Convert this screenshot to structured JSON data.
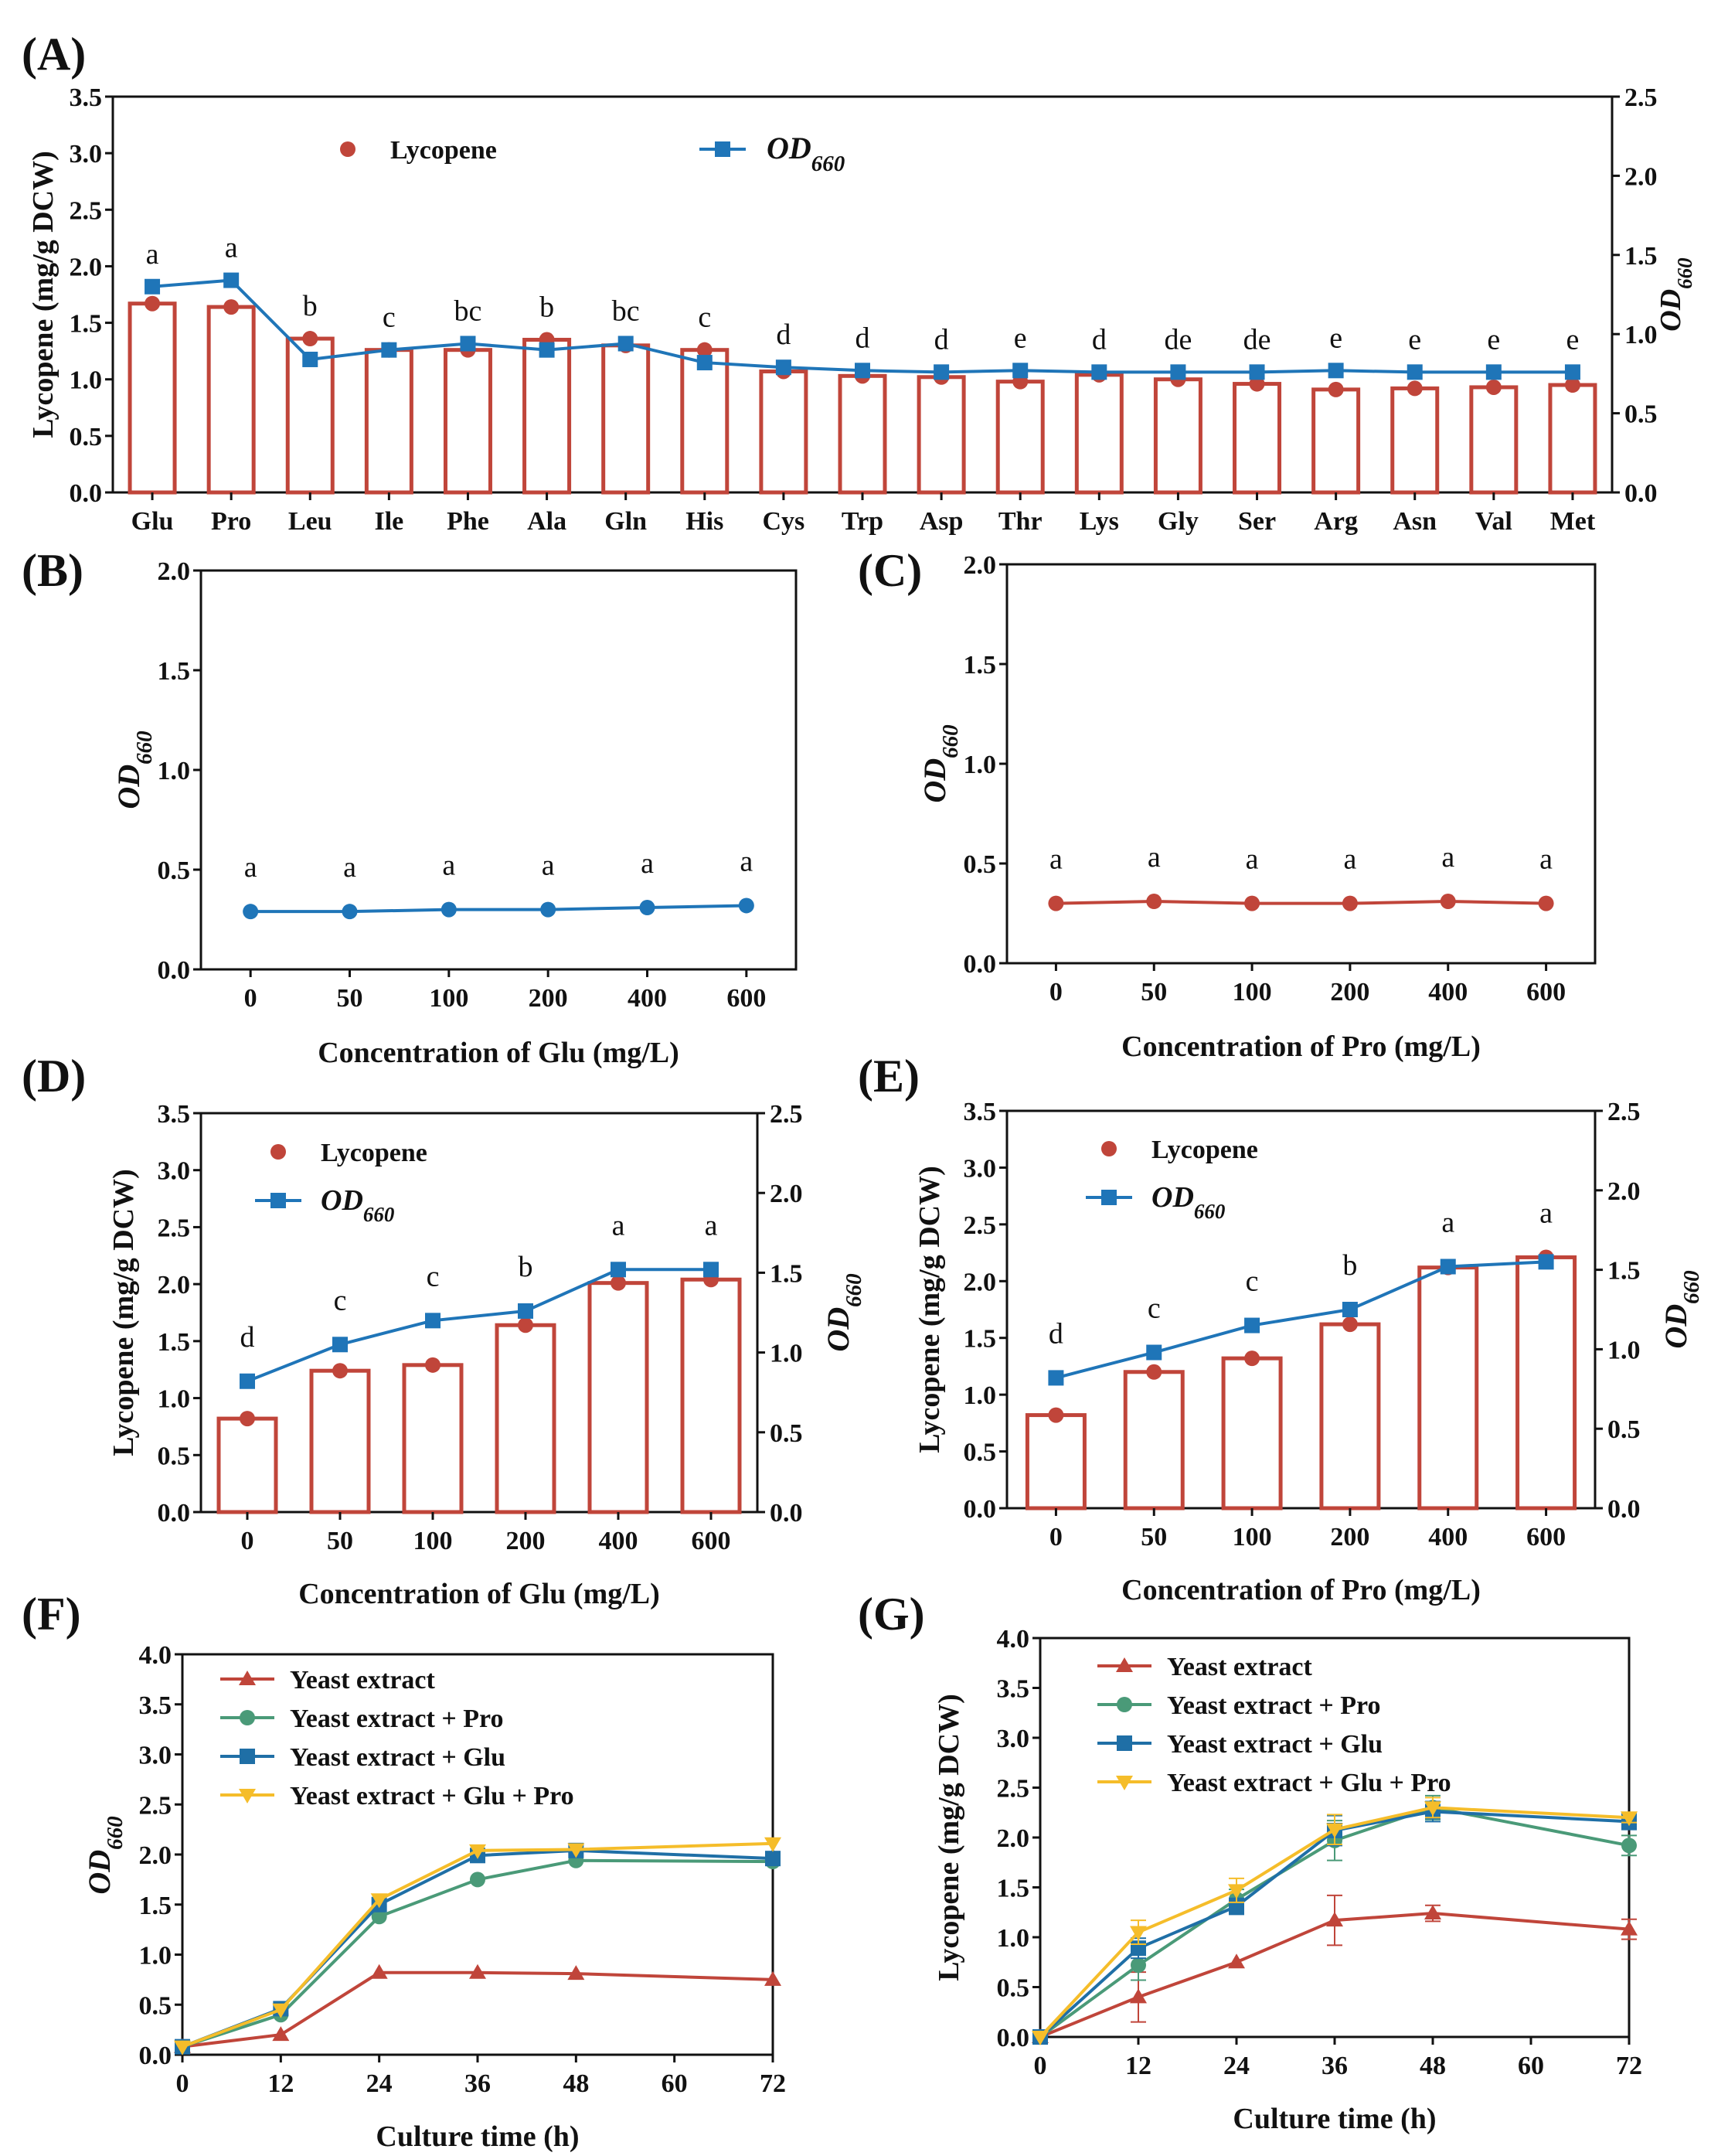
{
  "panels": [
    "(A)",
    "(B)",
    "(C)",
    "(D)",
    "(E)",
    "(F)",
    "(G)"
  ],
  "colors": {
    "lycopene": "#c0453a",
    "od": "#1f75b8",
    "green": "#4a9a78",
    "yellow": "#f5bd2a",
    "blue_dark": "#1f6fa6",
    "axis": "#111111"
  },
  "chart_data": [
    {
      "id": "A",
      "type": "bar",
      "panel_label": "(A)",
      "categories": [
        "Glu",
        "Pro",
        "Leu",
        "Ile",
        "Phe",
        "Ala",
        "Gln",
        "His",
        "Cys",
        "Trp",
        "Asp",
        "Thr",
        "Lys",
        "Gly",
        "Ser",
        "Arg",
        "Asn",
        "Val",
        "Met"
      ],
      "lycopene": [
        1.67,
        1.64,
        1.36,
        1.26,
        1.26,
        1.35,
        1.3,
        1.26,
        1.07,
        1.03,
        1.02,
        0.98,
        1.04,
        1.0,
        0.96,
        0.91,
        0.92,
        0.93,
        0.95
      ],
      "od660": [
        1.3,
        1.34,
        0.84,
        0.9,
        0.94,
        0.9,
        0.94,
        0.82,
        0.79,
        0.77,
        0.76,
        0.77,
        0.76,
        0.76,
        0.76,
        0.77,
        0.76,
        0.76,
        0.76
      ],
      "letters": [
        "a",
        "a",
        "b",
        "c",
        "bc",
        "b",
        "bc",
        "c",
        "d",
        "d",
        "d",
        "e",
        "d",
        "de",
        "de",
        "e",
        "e",
        "e",
        "e"
      ],
      "ylabel": "Lycopene (mg/g DCW)",
      "y2label": "OD660",
      "ylim": [
        0,
        3.5
      ],
      "y2lim": [
        0,
        2.5
      ],
      "yticks": [
        "0.0",
        "0.5",
        "1.0",
        "1.5",
        "2.0",
        "2.5",
        "3.0",
        "3.5"
      ],
      "y2ticks": [
        "0.0",
        "0.5",
        "1.0",
        "1.5",
        "2.0",
        "2.5"
      ],
      "legend": [
        "Lycopene",
        "OD660"
      ]
    },
    {
      "id": "B",
      "type": "line",
      "panel_label": "(B)",
      "categories": [
        "0",
        "50",
        "100",
        "200",
        "400",
        "600"
      ],
      "od660": [
        0.29,
        0.29,
        0.3,
        0.3,
        0.31,
        0.32
      ],
      "letters": [
        "a",
        "a",
        "a",
        "a",
        "a",
        "a"
      ],
      "ylabel": "OD660",
      "xlabel": "Concentration of Glu (mg/L)",
      "ylim": [
        0,
        2.0
      ],
      "yticks": [
        "0.0",
        "0.5",
        "1.0",
        "1.5",
        "2.0"
      ]
    },
    {
      "id": "C",
      "type": "line",
      "panel_label": "(C)",
      "categories": [
        "0",
        "50",
        "100",
        "200",
        "400",
        "600"
      ],
      "od660": [
        0.3,
        0.31,
        0.3,
        0.3,
        0.31,
        0.3
      ],
      "letters": [
        "a",
        "a",
        "a",
        "a",
        "a",
        "a"
      ],
      "ylabel": "OD660",
      "xlabel": "Concentration of Pro (mg/L)",
      "ylim": [
        0,
        2.0
      ],
      "yticks": [
        "0.0",
        "0.5",
        "1.0",
        "1.5",
        "2.0"
      ]
    },
    {
      "id": "D",
      "type": "bar",
      "panel_label": "(D)",
      "categories": [
        "0",
        "50",
        "100",
        "200",
        "400",
        "600"
      ],
      "lycopene": [
        0.82,
        1.24,
        1.29,
        1.64,
        2.01,
        2.04
      ],
      "od660": [
        0.82,
        1.05,
        1.2,
        1.26,
        1.52,
        1.52
      ],
      "letters": [
        "d",
        "c",
        "c",
        "b",
        "a",
        "a"
      ],
      "ylabel": "Lycopene  (mg/g DCW)",
      "y2label": "OD660",
      "xlabel": "Concentration of Glu (mg/L)",
      "ylim": [
        0,
        3.5
      ],
      "y2lim": [
        0,
        2.5
      ],
      "yticks": [
        "0.0",
        "0.5",
        "1.0",
        "1.5",
        "2.0",
        "2.5",
        "3.0",
        "3.5"
      ],
      "y2ticks": [
        "0.0",
        "0.5",
        "1.0",
        "1.5",
        "2.0",
        "2.5"
      ],
      "legend": [
        "Lycopene",
        "OD660"
      ]
    },
    {
      "id": "E",
      "type": "bar",
      "panel_label": "(E)",
      "categories": [
        "0",
        "50",
        "100",
        "200",
        "400",
        "600"
      ],
      "lycopene": [
        0.82,
        1.2,
        1.32,
        1.62,
        2.12,
        2.21
      ],
      "od660": [
        0.82,
        0.98,
        1.15,
        1.25,
        1.52,
        1.55
      ],
      "letters": [
        "d",
        "c",
        "c",
        "b",
        "a",
        "a"
      ],
      "ylabel": "Lycopene (mg/g DCW)",
      "y2label": "OD660",
      "xlabel": "Concentration of Pro (mg/L)",
      "ylim": [
        0,
        3.5
      ],
      "y2lim": [
        0,
        2.5
      ],
      "yticks": [
        "0.0",
        "0.5",
        "1.0",
        "1.5",
        "2.0",
        "2.5",
        "3.0",
        "3.5"
      ],
      "y2ticks": [
        "0.0",
        "0.5",
        "1.0",
        "1.5",
        "2.0",
        "2.5"
      ],
      "legend": [
        "Lycopene",
        "OD660"
      ]
    },
    {
      "id": "F",
      "type": "line",
      "panel_label": "(F)",
      "x": [
        0,
        12,
        24,
        36,
        48,
        72
      ],
      "series": [
        {
          "name": "Yeast extract",
          "values": [
            0.08,
            0.2,
            0.82,
            0.82,
            0.81,
            0.75
          ]
        },
        {
          "name": "Yeast extract + Pro",
          "values": [
            0.08,
            0.4,
            1.38,
            1.75,
            1.94,
            1.93
          ]
        },
        {
          "name": "Yeast extract + Glu",
          "values": [
            0.08,
            0.46,
            1.5,
            1.99,
            2.04,
            1.96
          ]
        },
        {
          "name": "Yeast extract + Glu + Pro",
          "values": [
            0.08,
            0.45,
            1.55,
            2.04,
            2.05,
            2.11
          ]
        }
      ],
      "ylabel": "OD660",
      "xlabel": "Culture time (h)",
      "xlim": [
        0,
        72
      ],
      "ylim": [
        0,
        4.0
      ],
      "xticks": [
        "0",
        "12",
        "24",
        "36",
        "48",
        "60",
        "72"
      ],
      "yticks": [
        "0.0",
        "0.5",
        "1.0",
        "1.5",
        "2.0",
        "2.5",
        "3.0",
        "3.5",
        "4.0"
      ]
    },
    {
      "id": "G",
      "type": "line",
      "panel_label": "(G)",
      "x": [
        0,
        12,
        24,
        36,
        48,
        72
      ],
      "series": [
        {
          "name": "Yeast extract",
          "values": [
            0.0,
            0.4,
            0.75,
            1.17,
            1.24,
            1.08
          ]
        },
        {
          "name": "Yeast extract + Pro",
          "values": [
            0.0,
            0.72,
            1.38,
            1.97,
            2.3,
            1.92
          ]
        },
        {
          "name": "Yeast extract + Glu",
          "values": [
            0.0,
            0.89,
            1.31,
            2.07,
            2.26,
            2.16
          ]
        },
        {
          "name": "Yeast extract + Glu + Pro",
          "values": [
            0.0,
            1.05,
            1.47,
            2.08,
            2.3,
            2.2
          ]
        }
      ],
      "ylabel": "Lycopene (mg/g DCW)",
      "xlabel": "Culture time (h)",
      "xlim": [
        0,
        72
      ],
      "ylim": [
        0,
        4.0
      ],
      "xticks": [
        "0",
        "12",
        "24",
        "36",
        "48",
        "60",
        "72"
      ],
      "yticks": [
        "0.0",
        "0.5",
        "1.0",
        "1.5",
        "2.0",
        "2.5",
        "3.0",
        "3.5",
        "4.0"
      ]
    }
  ]
}
